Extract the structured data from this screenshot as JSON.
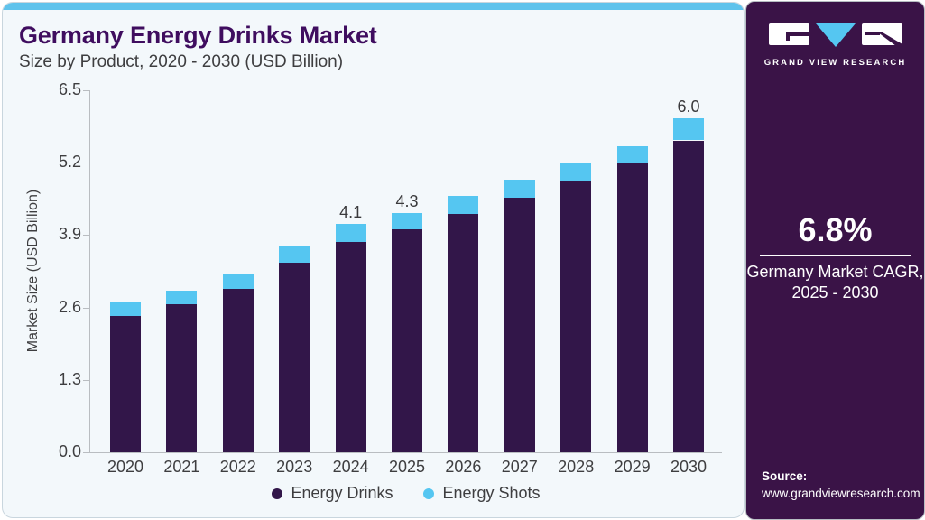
{
  "header": {
    "title": "Germany Energy Drinks Market",
    "subtitle": "Size by Product, 2020 - 2030 (USD Billion)"
  },
  "chart_data": {
    "type": "bar",
    "stacked": true,
    "title": "Germany Energy Drinks Market Size by Product, 2020 - 2030 (USD Billion)",
    "categories": [
      "2020",
      "2021",
      "2022",
      "2023",
      "2024",
      "2025",
      "2026",
      "2027",
      "2028",
      "2029",
      "2030"
    ],
    "series": [
      {
        "name": "Energy Drinks",
        "color": "#321649",
        "values": [
          2.45,
          2.66,
          2.94,
          3.4,
          3.78,
          4.0,
          4.28,
          4.57,
          4.87,
          5.18,
          5.6
        ]
      },
      {
        "name": "Energy Shots",
        "color": "#55c6f1",
        "values": [
          0.25,
          0.24,
          0.26,
          0.3,
          0.32,
          0.3,
          0.32,
          0.33,
          0.33,
          0.32,
          0.4
        ]
      }
    ],
    "totals": [
      2.7,
      2.9,
      3.2,
      3.7,
      4.1,
      4.3,
      4.6,
      4.9,
      5.2,
      5.5,
      6.0
    ],
    "totals_shown": [
      "",
      "",
      "",
      "",
      "4.1",
      "4.3",
      "",
      "",
      "",
      "",
      "6.0"
    ],
    "ylabel": "Market Size (USD Billion)",
    "yticks": [
      "0.0",
      "1.3",
      "2.6",
      "3.9",
      "5.2",
      "6.5"
    ],
    "ylim": [
      0,
      6.5
    ],
    "grid": false,
    "legend_position": "bottom"
  },
  "sidebar": {
    "brand": "GRAND VIEW RESEARCH",
    "cagr_value": "6.8%",
    "cagr_line1": "Germany Market CAGR,",
    "cagr_line2": "2025 - 2030",
    "source_label": "Source:",
    "source_url": "www.grandviewresearch.com"
  },
  "colors": {
    "card_bg": "#f3f8fb",
    "top_strip": "#5fc3ec",
    "sidebar_bg": "#3a1347",
    "title_text": "#3f0d5f",
    "body_text": "#3e3e40",
    "axis_line": "#b9bdc1",
    "brand_purple": "#321649",
    "accent_blue": "#55c6f1"
  }
}
